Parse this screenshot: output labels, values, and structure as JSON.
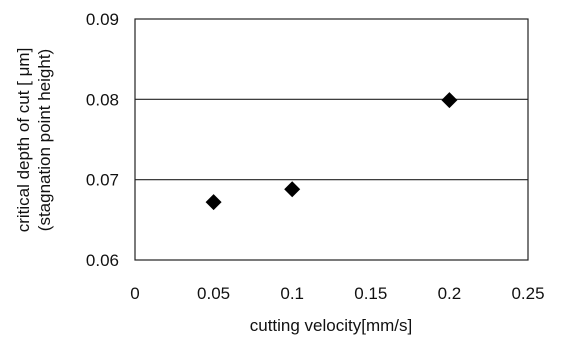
{
  "chart_data": {
    "type": "scatter",
    "xlabel": "cutting velocity[mm/s]",
    "ylabel": [
      "critical depth of cut [ μm]",
      "(stagnation point height)"
    ],
    "xlim": [
      0,
      0.25
    ],
    "ylim": [
      0.06,
      0.09
    ],
    "x_ticks": [
      "0",
      "0.05",
      "0.1",
      "0.15",
      "0.2",
      "0.25"
    ],
    "y_ticks": [
      "0.06",
      "0.07",
      "0.08",
      "0.09"
    ],
    "grid": "horizontal",
    "marker": "diamond",
    "series": [
      {
        "points": [
          {
            "x": 0.05,
            "y": 0.0672
          },
          {
            "x": 0.1,
            "y": 0.0688
          },
          {
            "x": 0.2,
            "y": 0.0799
          }
        ]
      }
    ]
  }
}
